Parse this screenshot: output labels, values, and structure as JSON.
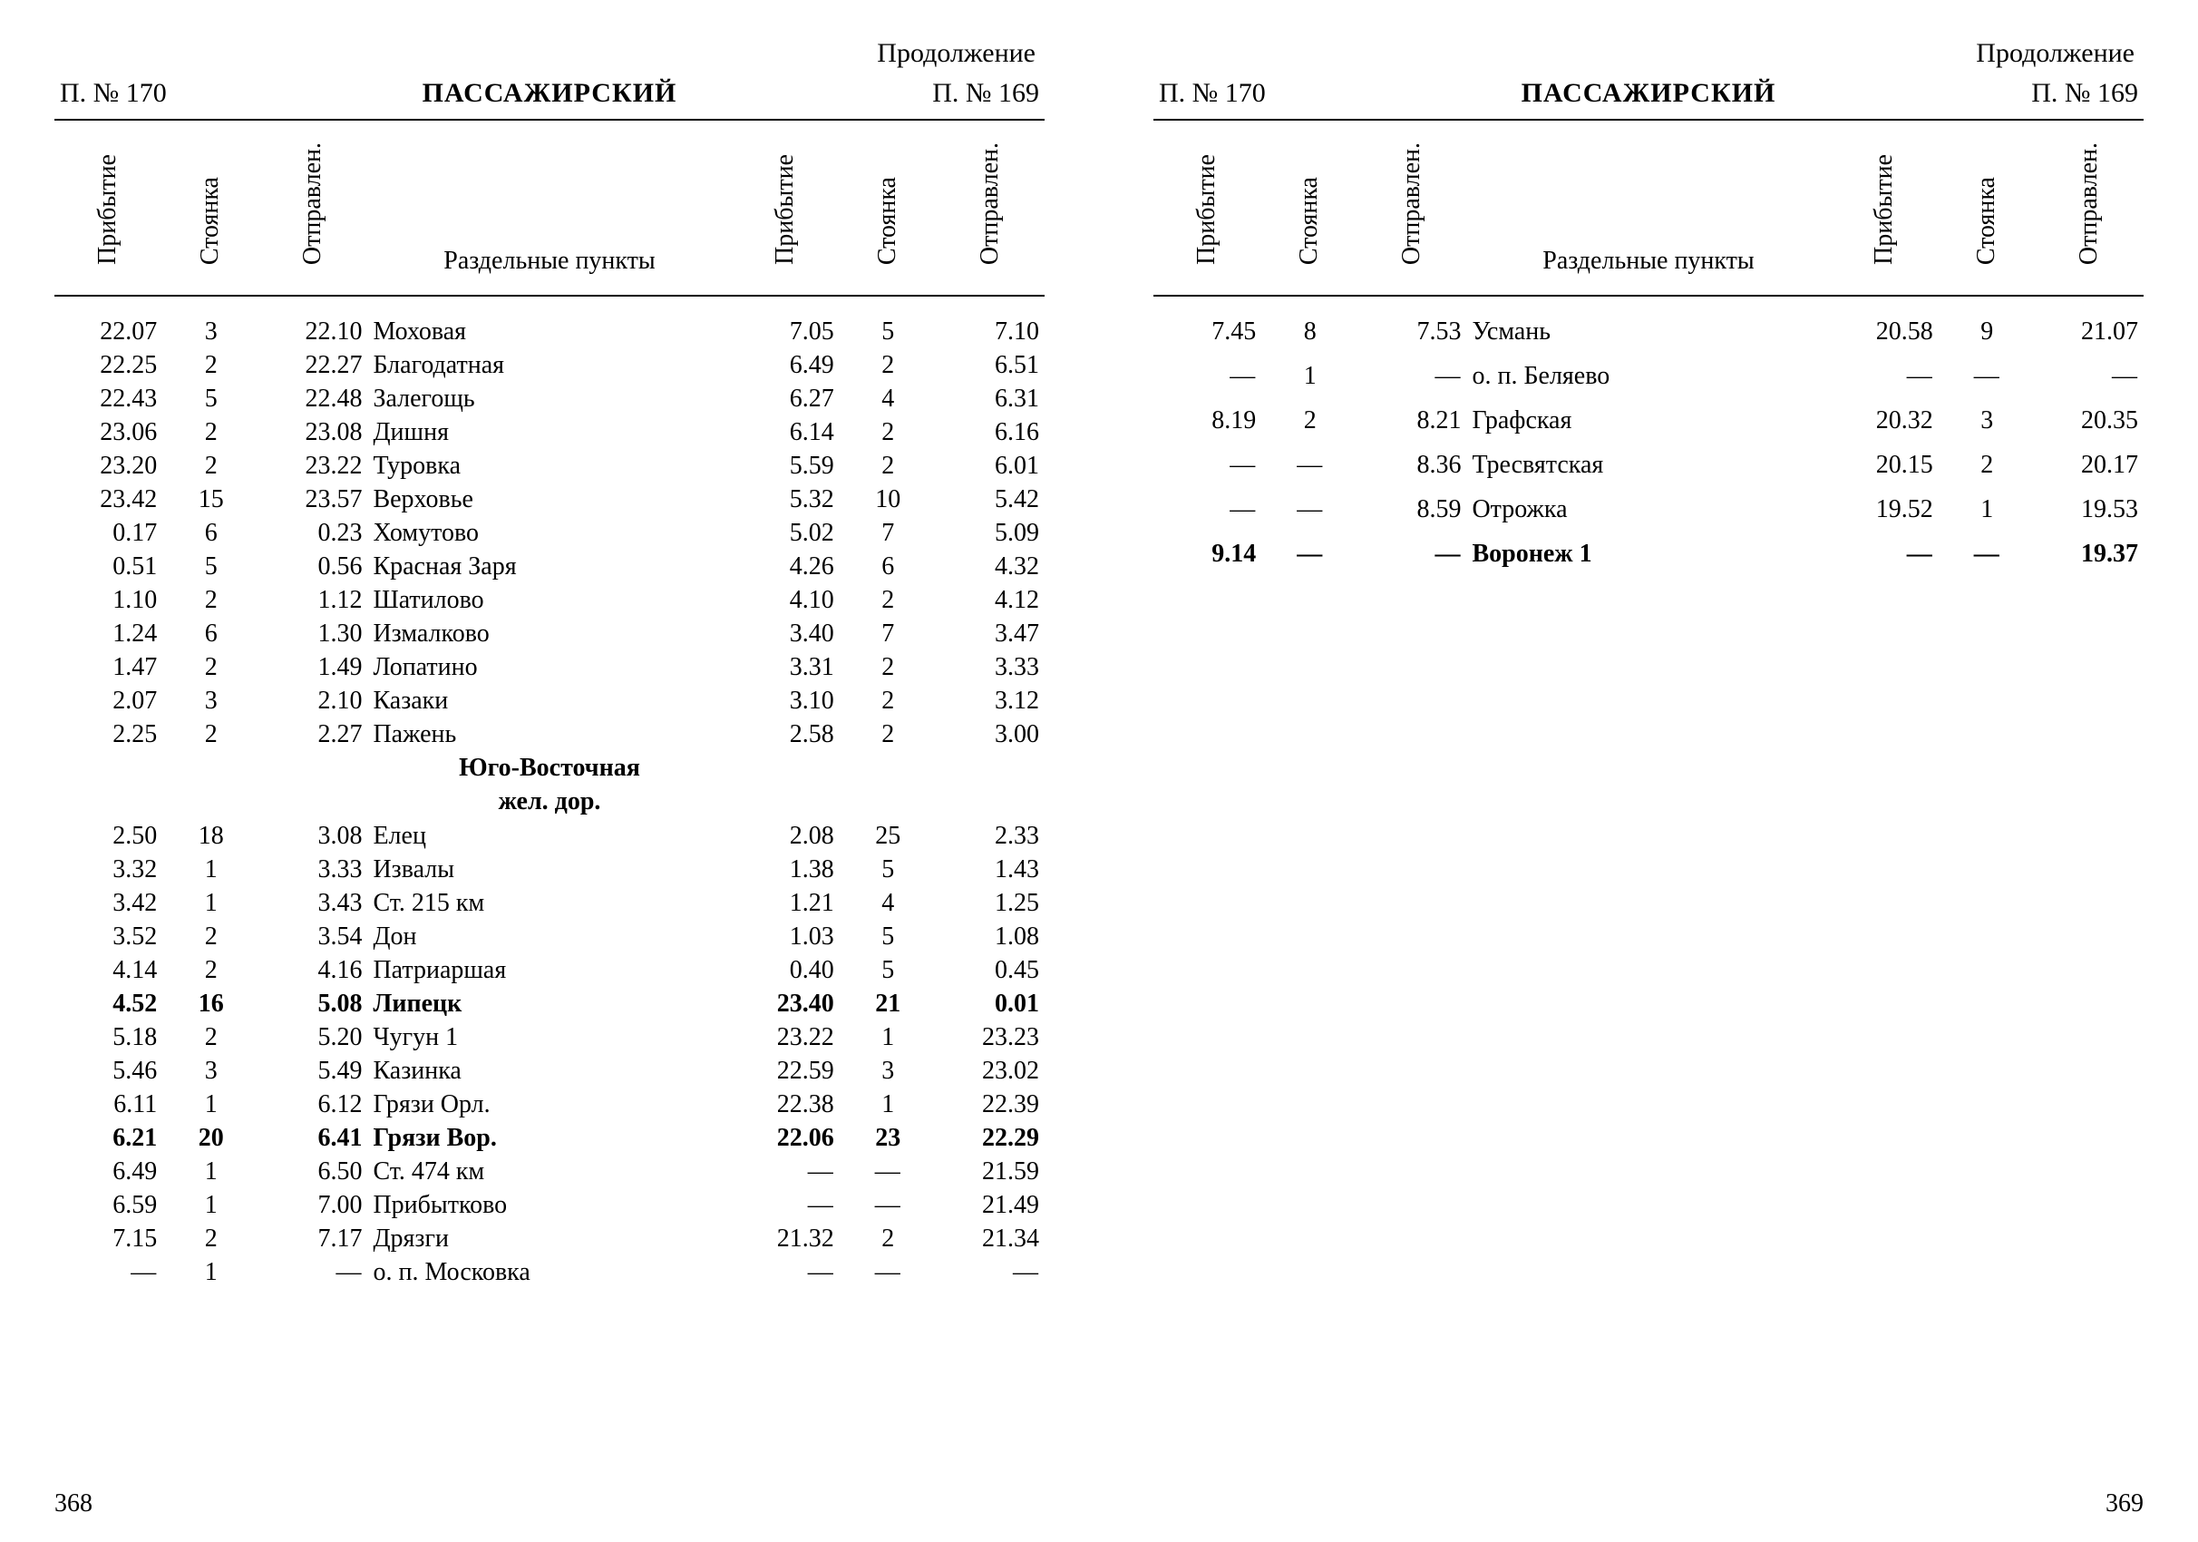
{
  "meta": {
    "continuation_label": "Продолжение",
    "train_left_label": "П.  №  170",
    "train_right_label": "П.  №  169",
    "title": "ПАССАЖИРСКИЙ",
    "col_arrival": "Прибытие",
    "col_stop": "Стоянка",
    "col_departure": "Отправлен.",
    "col_station": "Раздельные пункты",
    "page_left": "368",
    "page_right": "369",
    "font_family": "Times New Roman, serif",
    "body_fontsize_pt": 14,
    "header_fontsize_pt": 15,
    "text_color": "#000000",
    "background_color": "#ffffff",
    "rule_color": "#000000"
  },
  "left_page": {
    "rows": [
      {
        "a1": "22.07",
        "s1": "3",
        "d1": "22.10",
        "st": "Моховая",
        "a2": "7.05",
        "s2": "5",
        "d2": "7.10"
      },
      {
        "a1": "22.25",
        "s1": "2",
        "d1": "22.27",
        "st": "Благодатная",
        "a2": "6.49",
        "s2": "2",
        "d2": "6.51"
      },
      {
        "a1": "22.43",
        "s1": "5",
        "d1": "22.48",
        "st": "Залегощь",
        "a2": "6.27",
        "s2": "4",
        "d2": "6.31"
      },
      {
        "a1": "23.06",
        "s1": "2",
        "d1": "23.08",
        "st": "Дишня",
        "a2": "6.14",
        "s2": "2",
        "d2": "6.16"
      },
      {
        "a1": "23.20",
        "s1": "2",
        "d1": "23.22",
        "st": "Туровка",
        "a2": "5.59",
        "s2": "2",
        "d2": "6.01"
      },
      {
        "a1": "23.42",
        "s1": "15",
        "d1": "23.57",
        "st": "Верховье",
        "a2": "5.32",
        "s2": "10",
        "d2": "5.42"
      },
      {
        "a1": "0.17",
        "s1": "6",
        "d1": "0.23",
        "st": "Хомутово",
        "a2": "5.02",
        "s2": "7",
        "d2": "5.09"
      },
      {
        "a1": "0.51",
        "s1": "5",
        "d1": "0.56",
        "st": "Красная Заря",
        "a2": "4.26",
        "s2": "6",
        "d2": "4.32"
      },
      {
        "a1": "1.10",
        "s1": "2",
        "d1": "1.12",
        "st": "Шатилово",
        "a2": "4.10",
        "s2": "2",
        "d2": "4.12"
      },
      {
        "a1": "1.24",
        "s1": "6",
        "d1": "1.30",
        "st": "Измалково",
        "a2": "3.40",
        "s2": "7",
        "d2": "3.47"
      },
      {
        "a1": "1.47",
        "s1": "2",
        "d1": "1.49",
        "st": "Лопатино",
        "a2": "3.31",
        "s2": "2",
        "d2": "3.33"
      },
      {
        "a1": "2.07",
        "s1": "3",
        "d1": "2.10",
        "st": "Казаки",
        "a2": "3.10",
        "s2": "2",
        "d2": "3.12"
      },
      {
        "a1": "2.25",
        "s1": "2",
        "d1": "2.27",
        "st": "Пажень",
        "a2": "2.58",
        "s2": "2",
        "d2": "3.00"
      }
    ],
    "section_heading": "Юго-Восточная\nжел. дор.",
    "rows2": [
      {
        "a1": "2.50",
        "s1": "18",
        "d1": "3.08",
        "st": "Елец",
        "a2": "2.08",
        "s2": "25",
        "d2": "2.33"
      },
      {
        "a1": "3.32",
        "s1": "1",
        "d1": "3.33",
        "st": "Извалы",
        "a2": "1.38",
        "s2": "5",
        "d2": "1.43"
      },
      {
        "a1": "3.42",
        "s1": "1",
        "d1": "3.43",
        "st": "Ст. 215 км",
        "a2": "1.21",
        "s2": "4",
        "d2": "1.25"
      },
      {
        "a1": "3.52",
        "s1": "2",
        "d1": "3.54",
        "st": "Дон",
        "a2": "1.03",
        "s2": "5",
        "d2": "1.08"
      },
      {
        "a1": "4.14",
        "s1": "2",
        "d1": "4.16",
        "st": "Патриаршая",
        "a2": "0.40",
        "s2": "5",
        "d2": "0.45"
      },
      {
        "a1": "4.52",
        "s1": "16",
        "d1": "5.08",
        "st": "Липецк",
        "a2": "23.40",
        "s2": "21",
        "d2": "0.01",
        "bold": true
      },
      {
        "a1": "5.18",
        "s1": "2",
        "d1": "5.20",
        "st": "Чугун 1",
        "a2": "23.22",
        "s2": "1",
        "d2": "23.23"
      },
      {
        "a1": "5.46",
        "s1": "3",
        "d1": "5.49",
        "st": "Казинка",
        "a2": "22.59",
        "s2": "3",
        "d2": "23.02"
      },
      {
        "a1": "6.11",
        "s1": "1",
        "d1": "6.12",
        "st": "Грязи Орл.",
        "a2": "22.38",
        "s2": "1",
        "d2": "22.39"
      },
      {
        "a1": "6.21",
        "s1": "20",
        "d1": "6.41",
        "st": "Грязи Вор.",
        "a2": "22.06",
        "s2": "23",
        "d2": "22.29",
        "bold": true
      },
      {
        "a1": "6.49",
        "s1": "1",
        "d1": "6.50",
        "st": "Ст. 474 км",
        "a2": "—",
        "s2": "—",
        "d2": "21.59"
      },
      {
        "a1": "6.59",
        "s1": "1",
        "d1": "7.00",
        "st": "Прибытково",
        "a2": "—",
        "s2": "—",
        "d2": "21.49"
      },
      {
        "a1": "7.15",
        "s1": "2",
        "d1": "7.17",
        "st": "Дрязги",
        "a2": "21.32",
        "s2": "2",
        "d2": "21.34"
      },
      {
        "a1": "—",
        "s1": "1",
        "d1": "—",
        "st": "о. п. Московка",
        "a2": "—",
        "s2": "—",
        "d2": "—"
      }
    ]
  },
  "right_page": {
    "rows": [
      {
        "a1": "7.45",
        "s1": "8",
        "d1": "7.53",
        "st": "Усмань",
        "a2": "20.58",
        "s2": "9",
        "d2": "21.07"
      },
      {
        "a1": "—",
        "s1": "1",
        "d1": "—",
        "st": "о. п. Беляево",
        "a2": "—",
        "s2": "—",
        "d2": "—"
      },
      {
        "a1": "8.19",
        "s1": "2",
        "d1": "8.21",
        "st": "Графская",
        "a2": "20.32",
        "s2": "3",
        "d2": "20.35"
      },
      {
        "a1": "—",
        "s1": "—",
        "d1": "8.36",
        "st": "Тресвятская",
        "a2": "20.15",
        "s2": "2",
        "d2": "20.17"
      },
      {
        "a1": "—",
        "s1": "—",
        "d1": "8.59",
        "st": "Отрожка",
        "a2": "19.52",
        "s2": "1",
        "d2": "19.53"
      },
      {
        "a1": "9.14",
        "s1": "—",
        "d1": "—",
        "st": "Воронеж 1",
        "a2": "—",
        "s2": "—",
        "d2": "19.37",
        "bold": true
      }
    ]
  }
}
